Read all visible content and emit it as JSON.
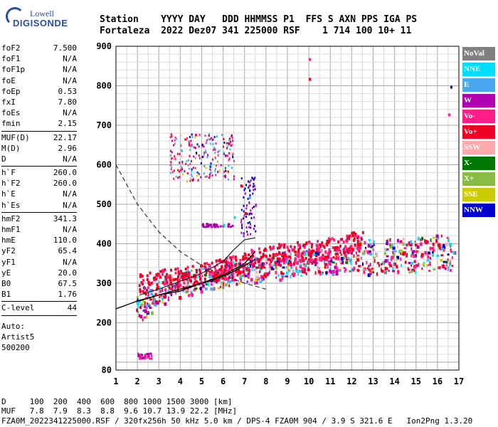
{
  "logo": {
    "brand_small": "Lowell",
    "brand_big": "DIGISONDE"
  },
  "header": {
    "line1": "Station    YYYY DAY   DDD HHMMSS P1  FFS S AXN PPS IGA PS",
    "line2": "Fortaleza  2022 Dez07 341 225000 RSF    1 714 100 10+ 11"
  },
  "params": [
    {
      "group": [
        [
          "foF2",
          "7.500"
        ],
        [
          "foF1",
          "N/A"
        ],
        [
          "foF1p",
          "N/A"
        ],
        [
          "foE",
          "N/A"
        ],
        [
          "foEp",
          "0.53"
        ],
        [
          "fxI",
          "7.80"
        ],
        [
          "foEs",
          "N/A"
        ],
        [
          "fmin",
          "2.15"
        ]
      ]
    },
    {
      "group": [
        [
          "MUF(D)",
          "22.17"
        ],
        [
          "M(D)",
          "2.96"
        ],
        [
          "D",
          "N/A"
        ]
      ]
    },
    {
      "group": [
        [
          "h`F",
          "260.0"
        ],
        [
          "h`F2",
          "260.0"
        ],
        [
          "h`E",
          "N/A"
        ],
        [
          "h`Es",
          "N/A"
        ]
      ]
    },
    {
      "group": [
        [
          "hmF2",
          "341.3"
        ],
        [
          "hmF1",
          "N/A"
        ],
        [
          "hmE",
          "110.0"
        ],
        [
          "yF2",
          "65.4"
        ],
        [
          "yF1",
          "N/A"
        ],
        [
          "yE",
          "20.0"
        ],
        [
          "B0",
          "67.5"
        ],
        [
          "B1",
          "1.76"
        ]
      ]
    },
    {
      "group": [
        [
          "C-level",
          "44"
        ]
      ]
    }
  ],
  "notes": [
    "Auto:",
    "Artist5",
    "500200"
  ],
  "legend": [
    {
      "label": "NoVal",
      "color": "#808080"
    },
    {
      "label": "NNE",
      "color": "#00ddff"
    },
    {
      "label": "E",
      "color": "#4aa8f0"
    },
    {
      "label": "W",
      "color": "#b000b0"
    },
    {
      "label": "Vo-",
      "color": "#ff1e88"
    },
    {
      "label": "Vo+",
      "color": "#ee0022"
    },
    {
      "label": "SSW",
      "color": "#ffaaaa"
    },
    {
      "label": "X-",
      "color": "#007700"
    },
    {
      "label": "X+",
      "color": "#88bb44"
    },
    {
      "label": "SSE",
      "color": "#cccc00"
    },
    {
      "label": "NNW",
      "color": "#0000cc"
    }
  ],
  "footer": {
    "line1": "D     100  200  400  600  800 1000 1500 3000 [km]",
    "line2": "MUF   7.8  7.9  8.3  8.8  9.6 10.7 13.9 22.2 [MHz]",
    "line3": "FZA0M_2022341225000.RSF / 320fx256h 50 kHz 5.0 km / DPS-4 FZA0M 904 / 3.9 S 321.6 E   Ion2Png 1.3.20"
  },
  "chart_data": {
    "type": "scatter",
    "title": "",
    "xlabel": "",
    "ylabel": "",
    "xlim": [
      1,
      17
    ],
    "ylim": [
      80,
      900
    ],
    "x_ticks": [
      1,
      2,
      3,
      4,
      5,
      6,
      7,
      8,
      9,
      10,
      11,
      12,
      13,
      14,
      15,
      16,
      17
    ],
    "y_ticks": [
      80,
      200,
      300,
      400,
      500,
      600,
      700,
      800,
      900
    ],
    "grid": true,
    "legend_position": "right",
    "ordinary_trace": {
      "name": "",
      "x": [
        2.1,
        2.5,
        3,
        3.5,
        4,
        4.5,
        5,
        5.5,
        6,
        6.5,
        7,
        7.5
      ],
      "y": [
        255,
        262,
        270,
        278,
        285,
        292,
        300,
        308,
        318,
        330,
        345,
        360
      ]
    },
    "extraordinary_trace": {
      "name": "",
      "x": [
        2.1,
        3,
        4,
        5,
        6,
        6.5,
        7,
        7.5
      ],
      "y": [
        270,
        285,
        305,
        325,
        355,
        385,
        410,
        415
      ]
    },
    "muf_curve": {
      "name": "",
      "x": [
        1,
        1.5,
        2,
        2.5,
        3,
        4,
        5,
        6,
        7,
        8
      ],
      "y": [
        600,
        550,
        500,
        465,
        430,
        380,
        345,
        320,
        300,
        285
      ]
    },
    "height_profile": {
      "name": "",
      "x": [
        1,
        2,
        3,
        4,
        5,
        6,
        7,
        7.5
      ],
      "y": [
        235,
        255,
        270,
        280,
        300,
        320,
        350,
        380
      ]
    },
    "band_points": [
      [
        2.2,
        280
      ],
      [
        2.5,
        300
      ],
      [
        3,
        320
      ],
      [
        3.5,
        330
      ],
      [
        4,
        340
      ],
      [
        4.5,
        345
      ],
      [
        5,
        355
      ],
      [
        5.5,
        360
      ],
      [
        6,
        365
      ],
      [
        6.5,
        370
      ],
      [
        7,
        375
      ],
      [
        7.5,
        378
      ],
      [
        8,
        380
      ],
      [
        8.5,
        385
      ],
      [
        9,
        390
      ],
      [
        9.5,
        392
      ],
      [
        10,
        395
      ],
      [
        10.5,
        398
      ],
      [
        11,
        400
      ],
      [
        11.5,
        402
      ],
      [
        12,
        405
      ],
      [
        12.5,
        408
      ],
      [
        13,
        410
      ],
      [
        13.5,
        412
      ],
      [
        14,
        412
      ],
      [
        14.5,
        413
      ],
      [
        15,
        415
      ],
      [
        15.5,
        418
      ],
      [
        16,
        420
      ],
      [
        16.5,
        420
      ]
    ],
    "f_layer_cluster": {
      "x": [
        3.5,
        6.5
      ],
      "y": [
        560,
        680
      ]
    },
    "spread_points": [
      [
        6,
        450
      ],
      [
        6.5,
        470
      ],
      [
        7,
        480
      ],
      [
        7.2,
        520
      ],
      [
        6.8,
        550
      ],
      [
        10,
        870
      ],
      [
        10,
        820
      ],
      [
        16.6,
        800
      ],
      [
        16.5,
        730
      ]
    ],
    "low_echoes": {
      "x": [
        2,
        3
      ],
      "y": [
        110,
        130
      ]
    }
  }
}
